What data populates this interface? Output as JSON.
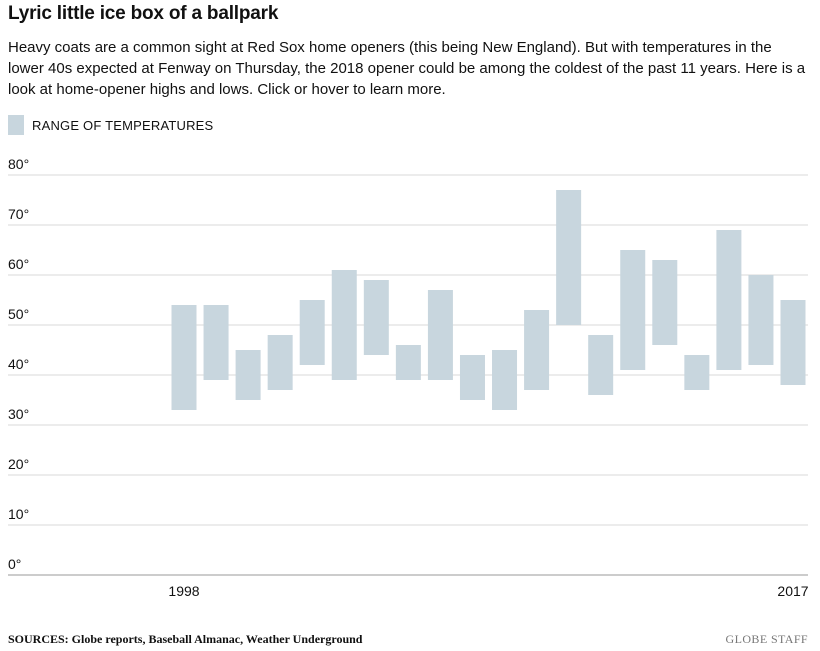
{
  "header": {
    "title": "Lyric little ice box of a ballpark",
    "subtitle": "Heavy coats are a common sight at Red Sox home openers (this being New England). But with temperatures in the lower 40s expected at Fenway on Thursday, the 2018 opener could be among the coldest of the past 11 years. Here is a look at home-opener highs and lows. Click or hover to learn more."
  },
  "legend": {
    "label": "RANGE OF TEMPERATURES",
    "color": "#c8d6de"
  },
  "footer": {
    "sources": "SOURCES: Globe reports, Baseball Almanac, Weather Underground",
    "credit": "GLOBE STAFF"
  },
  "chart_data": {
    "type": "floating-bar",
    "x_labels": [
      "1998",
      "2017"
    ],
    "years": [
      1998,
      1999,
      2000,
      2001,
      2002,
      2003,
      2004,
      2005,
      2006,
      2007,
      2008,
      2009,
      2010,
      2011,
      2012,
      2013,
      2014,
      2015,
      2016,
      2017
    ],
    "series": [
      {
        "lows": [
          33,
          39,
          35,
          37,
          42,
          39,
          44,
          39,
          39,
          35,
          33,
          37,
          50,
          36,
          41,
          46,
          37,
          41,
          42,
          38
        ],
        "highs": [
          54,
          54,
          45,
          48,
          55,
          61,
          59,
          46,
          57,
          44,
          45,
          53,
          77,
          48,
          65,
          63,
          44,
          69,
          60,
          55
        ],
        "color": "#c8d6de"
      }
    ],
    "y_ticks": [
      "80°",
      "70°",
      "60°",
      "50°",
      "40°",
      "30°",
      "20°",
      "10°",
      "0°"
    ],
    "ylim": [
      0,
      80
    ],
    "grid": true
  }
}
